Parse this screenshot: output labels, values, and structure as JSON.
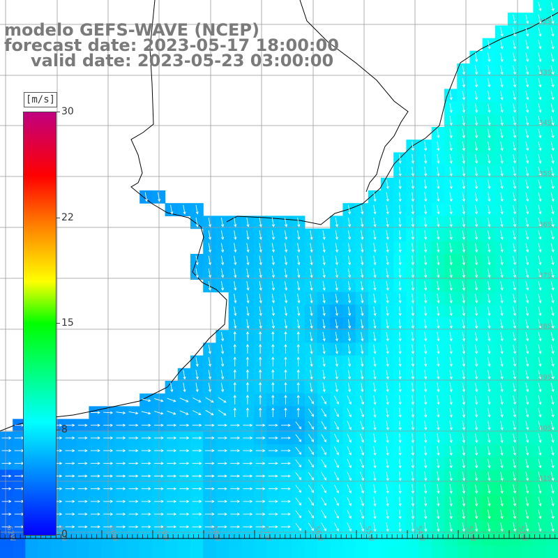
{
  "header": {
    "model": "modelo GEFS-WAVE (NCEP)",
    "forecast": "forecast date: 2023-05-17 18:00:00",
    "valid": "valid date: 2023-05-23 03:00:00"
  },
  "colorbar": {
    "unit": "[m/s]",
    "min": 0,
    "max": 30,
    "ticks": [
      "30",
      "22",
      "15",
      "8",
      "0"
    ],
    "colors": [
      "#0000ff",
      "#00ffff",
      "#00ff00",
      "#ffff00",
      "#ff7f00",
      "#ff0000",
      "#c00080"
    ]
  },
  "map": {
    "lat_labels": [
      "32S",
      "33S",
      "34S",
      "35S",
      "36S",
      "37S",
      "38S",
      "39S",
      "40S",
      "41S"
    ],
    "lon_labels": [
      "62W",
      "61W",
      "60W",
      "59W",
      "58W",
      "57W",
      "56W",
      "55W",
      "54W",
      "53W",
      "52W"
    ],
    "land_color": "#ffffff",
    "coast_color": "#000000",
    "grid_color": "#999999"
  }
}
